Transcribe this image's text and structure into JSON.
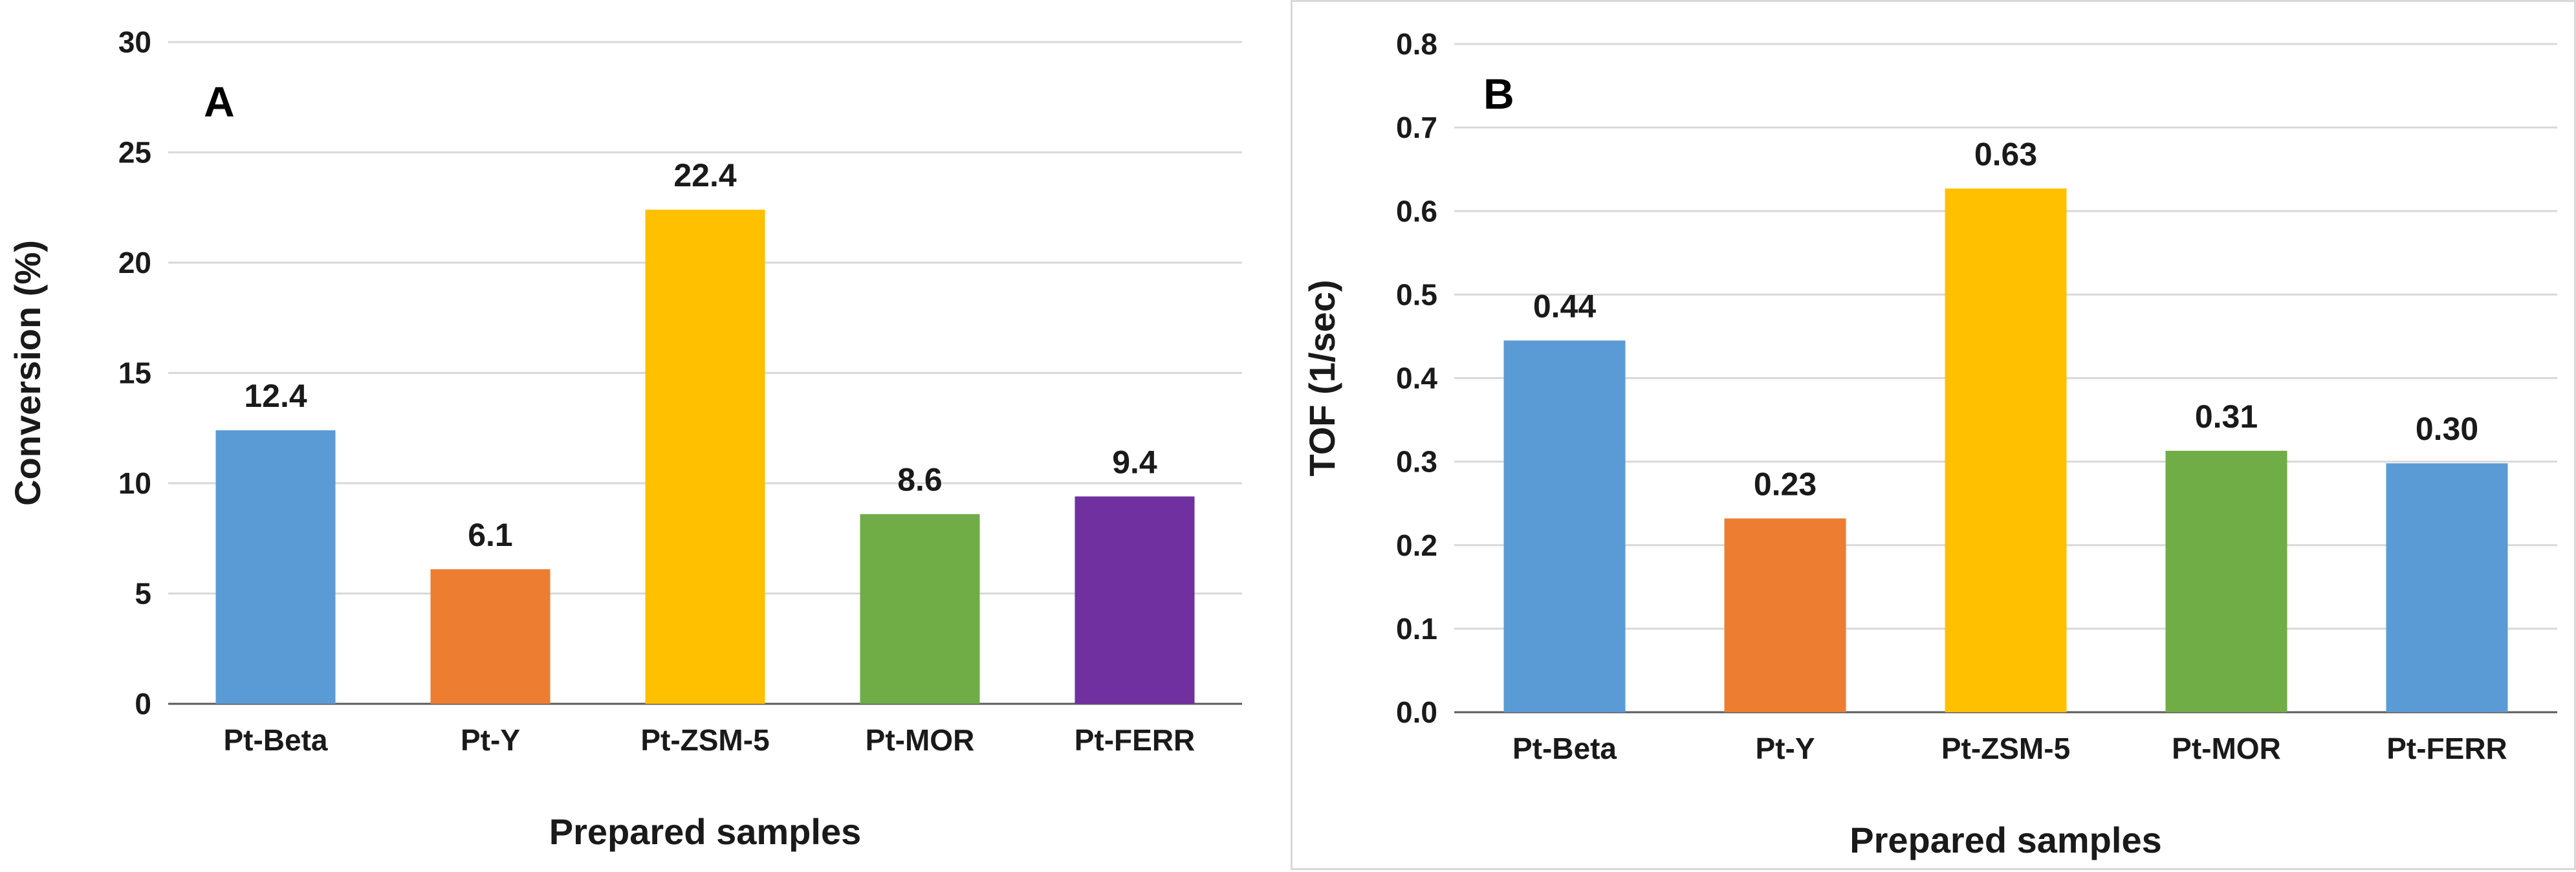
{
  "chart_data": [
    {
      "type": "bar",
      "panel_label": "A",
      "title": "",
      "categories": [
        "Pt-Beta",
        "Pt-Y",
        "Pt-ZSM-5",
        "Pt-MOR",
        "Pt-FERR"
      ],
      "values": [
        12.4,
        6.1,
        22.4,
        8.6,
        9.4
      ],
      "data_labels": [
        "12.4",
        "6.1",
        "22.4",
        "8.6",
        "9.4"
      ],
      "colors": [
        "#5b9bd5",
        "#ed7d31",
        "#ffc000",
        "#70ad47",
        "#7030a0"
      ],
      "xlabel": "Prepared samples",
      "ylabel": "Conversion (%)",
      "ylim": [
        0,
        30
      ],
      "yticks": [
        "0",
        "5",
        "10",
        "15",
        "20",
        "25",
        "30"
      ],
      "grid": true
    },
    {
      "type": "bar",
      "panel_label": "B",
      "title": "",
      "categories": [
        "Pt-Beta",
        "Pt-Y",
        "Pt-ZSM-5",
        "Pt-MOR",
        "Pt-FERR"
      ],
      "values": [
        0.445,
        0.232,
        0.627,
        0.313,
        0.298
      ],
      "data_labels": [
        "0.44",
        "0.23",
        "0.63",
        "0.31",
        "0.30"
      ],
      "colors": [
        "#5b9bd5",
        "#ed7d31",
        "#ffc000",
        "#70ad47",
        "#5b9bd5"
      ],
      "xlabel": "Prepared samples",
      "ylabel": "TOF (1/sec)",
      "ylim": [
        0,
        0.8
      ],
      "yticks": [
        "0.0",
        "0.1",
        "0.2",
        "0.3",
        "0.4",
        "0.5",
        "0.6",
        "0.7",
        "0.8"
      ],
      "grid": true
    }
  ]
}
